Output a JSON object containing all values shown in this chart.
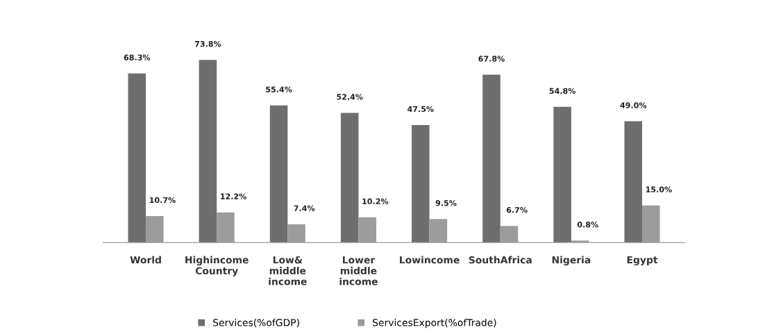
{
  "chart_data": {
    "type": "bar",
    "categories": [
      "World",
      "Highincome\nCountry",
      "Low&\nmiddle\nincome",
      "Lower\nmiddle\nincome",
      "Lowincome",
      "SouthAfrica",
      "Nigeria",
      "Egypt"
    ],
    "series": [
      {
        "name": "Services(%ofGDP)",
        "color": "#6e6e6e",
        "values": [
          68.3,
          73.8,
          55.4,
          52.4,
          47.5,
          67.8,
          54.8,
          49.0
        ],
        "value_labels": [
          "68.3%",
          "73.8%",
          "55.4%",
          "52.4%",
          "47.5%",
          "67.8%",
          "54.8%",
          "49.0%"
        ]
      },
      {
        "name": "ServicesExport(%ofTrade)",
        "color": "#9c9c9c",
        "values": [
          10.7,
          12.2,
          7.4,
          10.2,
          9.5,
          6.7,
          0.8,
          15.0
        ],
        "value_labels": [
          "10.7%",
          "12.2%",
          "7.4%",
          "10.2%",
          "9.5%",
          "6.7%",
          "0.8%",
          "15.0%"
        ]
      }
    ],
    "legend": "bottom"
  }
}
